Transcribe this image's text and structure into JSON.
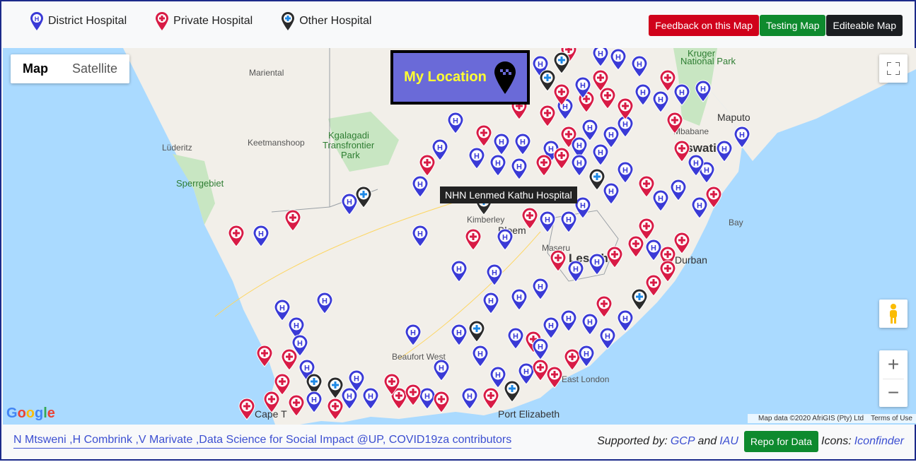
{
  "legend": [
    {
      "label": "District Hospital",
      "icon": "district-hospital-pin-icon",
      "color": "#3a3ad6"
    },
    {
      "label": "Private Hospital",
      "icon": "private-hospital-pin-icon",
      "color": "#d81b45"
    },
    {
      "label": "Other Hospital",
      "icon": "other-hospital-pin-icon",
      "color": "#2b2b2b"
    }
  ],
  "top_buttons": {
    "feedback": "Feedback on this Map",
    "testing": "Testing Map",
    "editable": "Editeable Map"
  },
  "map": {
    "toggle_map": "Map",
    "toggle_satellite": "Satellite",
    "my_location": "My Location",
    "tooltip": "NHN Lenmed Kathu Hospital",
    "google": "Google",
    "map_data": "Map data ©2020 AfriGIS (Pty) Ltd",
    "terms": "Terms of Use",
    "labels": {
      "mariental": "Mariental",
      "luderitz": "Lüderitz",
      "keetmanshoop": "Keetmanshoop",
      "kgalagadi": "Kgalagadi",
      "transfrontier": "Transfrontier",
      "park": "Park",
      "sperrgebiet": "Sperrgebiet",
      "maputo": "Maputo",
      "mbabane": "Mbabane",
      "eswatini": "Eswatini",
      "kruger": "Kruger",
      "national_park": "National Park",
      "lesotho": "Lesotho",
      "maseru": "Maseru",
      "bloem": "Bloem",
      "kimberley": "Kimberley",
      "beaufort_west": "Beaufort West",
      "durban": "Durban",
      "east_london": "East London",
      "port_elizabeth": "Port Elizabeth",
      "cape_town": "Cape T",
      "bay": "Bay"
    },
    "colors": {
      "land": "#f2efe9",
      "water": "#aadaff",
      "green": "#c8e6c2"
    }
  },
  "footer": {
    "credits": "N Mtsweni ,H Combrink ,V Marivate ,Data Science for Social Impact @UP, COVID19za contributors",
    "supported_by": "Supported by:",
    "gcp": "GCP",
    "and": "and",
    "iau": "IAU",
    "repo": "Repo for Data",
    "icons_label": "Icons:",
    "iconfinder": "Iconfinder"
  }
}
